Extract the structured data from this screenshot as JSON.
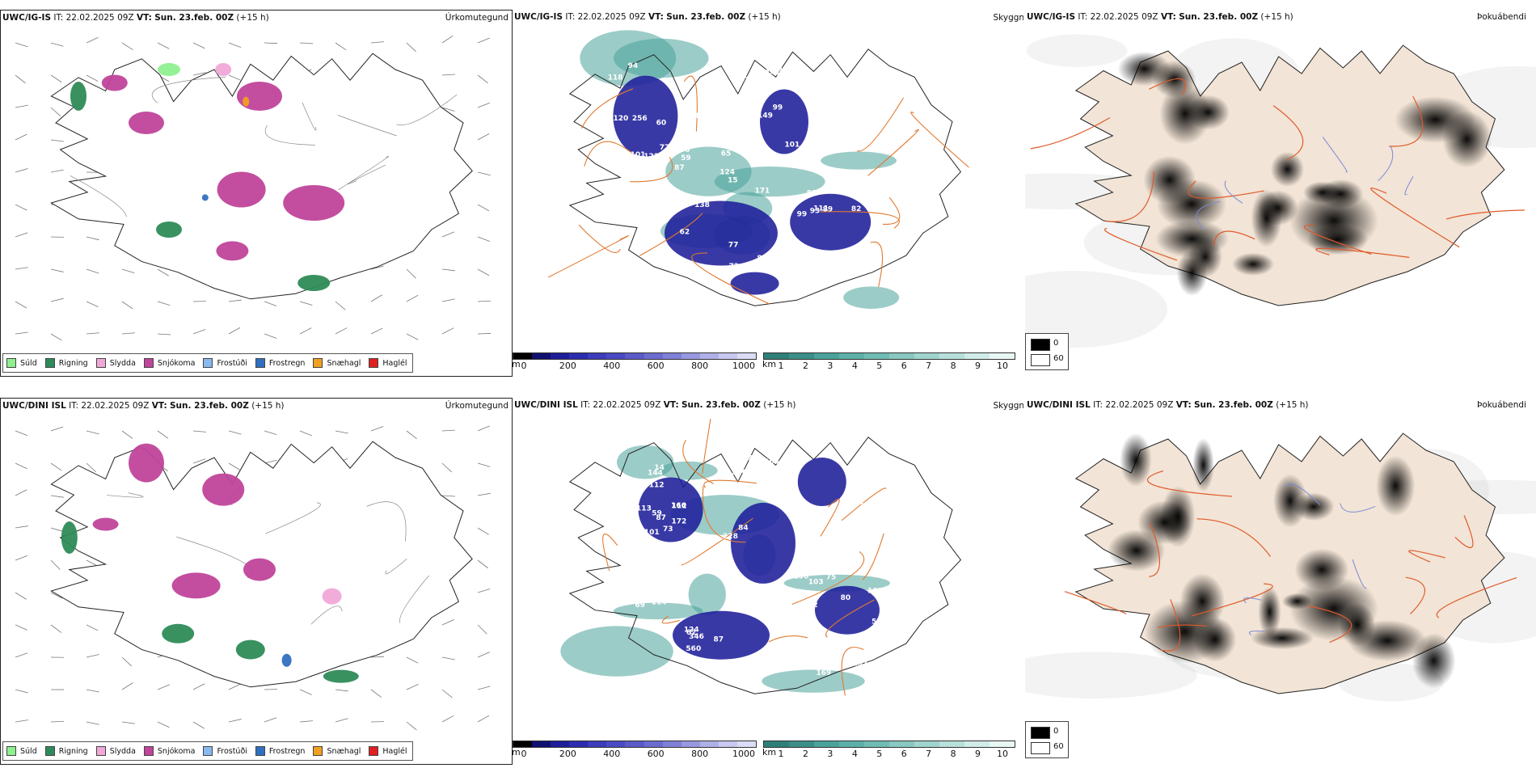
{
  "colors": {
    "sudd": "#8ff08f",
    "rigning": "#2e8b57",
    "slydda": "#f0a8d8",
    "snjokoma": "#c0449a",
    "frostudi": "#8ab8f0",
    "frostregn": "#3070c0",
    "snaehagl": "#f0a020",
    "haglel": "#e02020",
    "cloud_dark": "#1e1e9a",
    "cloud_mid": "#5a5ac8",
    "teal": "#4aa39a",
    "road": "#e07a30",
    "fog_land": "#f2e4d6",
    "fog_road": "#e05a2a",
    "river": "#7a8ad8"
  },
  "rows": [
    {
      "model": "UWC/IG-IS",
      "panels": [
        {
          "header_model": "UWC/IG-IS",
          "it_label": "IT:",
          "it_value": "22.02.2025 09Z",
          "vt_label": "VT:",
          "vt_value": "Sun. 23.feb. 00Z",
          "lead": "(+15 h)",
          "right": "Úrkomutegund"
        },
        {
          "header_model": "UWC/IG-IS",
          "it_label": "IT:",
          "it_value": "22.02.2025 09Z",
          "vt_label": "VT:",
          "vt_value": "Sun. 23.feb. 00Z",
          "lead": "(+15 h)",
          "right": "Skyggni"
        },
        {
          "header_model": "UWC/IG-IS",
          "it_label": "IT:",
          "it_value": "22.02.2025 09Z",
          "vt_label": "VT:",
          "vt_value": "Sun. 23.feb. 00Z",
          "lead": "(+15 h)",
          "right": "Þokuábendi"
        }
      ],
      "cloud_labels": [
        "141",
        "104",
        "120",
        "89",
        "107",
        "101",
        "107",
        "149",
        "99",
        "138",
        "107",
        "77",
        "77",
        "66",
        "54",
        "84",
        "82",
        "123",
        "114",
        "58",
        "59",
        "55",
        "93",
        "99",
        "104",
        "170",
        "931",
        "171",
        "102",
        "76",
        "61",
        "66",
        "87",
        "101",
        "102",
        "111",
        "94",
        "163",
        "60",
        "94",
        "91",
        "89",
        "117",
        "65",
        "82",
        "176",
        "108",
        "118",
        "72",
        "256",
        "62",
        "15",
        "124",
        "144",
        "141"
      ]
    },
    {
      "model": "UWC/DINI ISL",
      "panels": [
        {
          "header_model": "UWC/DINI ISL",
          "it_label": "IT:",
          "it_value": "22.02.2025 09Z",
          "vt_label": "VT:",
          "vt_value": "Sun. 23.feb. 00Z",
          "lead": "(+15 h)",
          "right": "Úrkomutegund"
        },
        {
          "header_model": "UWC/DINI ISL",
          "it_label": "IT:",
          "it_value": "22.02.2025 09Z",
          "vt_label": "VT:",
          "vt_value": "Sun. 23.feb. 00Z",
          "lead": "(+15 h)",
          "right": "Skyggni"
        },
        {
          "header_model": "UWC/DINI ISL",
          "it_label": "IT:",
          "it_value": "22.02.2025 09Z",
          "vt_label": "VT:",
          "vt_value": "Sun. 23.feb. 00Z",
          "lead": "(+15 h)",
          "right": "Þokuábendi"
        }
      ],
      "cloud_labels": [
        "169",
        "166",
        "184",
        "99",
        "87",
        "95",
        "86",
        "80",
        "71",
        "87",
        "49",
        "101",
        "211",
        "113",
        "246",
        "217",
        "246",
        "248",
        "560",
        "200",
        "399",
        "15",
        "103",
        "158",
        "145",
        "114",
        "124",
        "109",
        "172",
        "297",
        "128",
        "346",
        "52",
        "73",
        "190",
        "75",
        "62",
        "55",
        "82",
        "103",
        "169",
        "169",
        "228",
        "101",
        "112",
        "112",
        "59",
        "84",
        "69",
        "14",
        "144"
      ]
    }
  ],
  "precip_legend": [
    {
      "label": "Súld",
      "color_key": "sudd"
    },
    {
      "label": "Rigning",
      "color_key": "rigning"
    },
    {
      "label": "Slydda",
      "color_key": "slydda"
    },
    {
      "label": "Snjókoma",
      "color_key": "snjokoma"
    },
    {
      "label": "Frostúði",
      "color_key": "frostudi"
    },
    {
      "label": "Frostregn",
      "color_key": "frostregn"
    },
    {
      "label": "Snæhagl",
      "color_key": "snaehagl"
    },
    {
      "label": "Haglél",
      "color_key": "haglel"
    }
  ],
  "cloudbase_bar": {
    "unit": "m",
    "ticks": [
      "0",
      "200",
      "400",
      "600",
      "800",
      "1000"
    ]
  },
  "visibility_bar": {
    "unit": "km",
    "ticks": [
      "1",
      "2",
      "3",
      "4",
      "5",
      "6",
      "7",
      "8",
      "9",
      "10"
    ]
  },
  "fog_legend": {
    "dark_value": "0",
    "light_value": "60"
  }
}
